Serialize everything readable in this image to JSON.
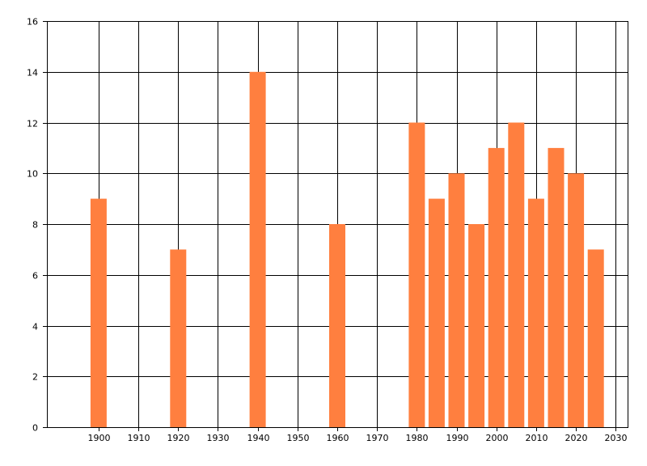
{
  "chart_data": {
    "type": "bar",
    "x": [
      1900,
      1920,
      1940,
      1960,
      1980,
      1985,
      1990,
      1995,
      2000,
      2005,
      2010,
      2015,
      2020,
      2025
    ],
    "values": [
      9,
      7,
      14,
      8,
      12,
      9,
      10,
      8,
      11,
      12,
      9,
      11,
      10,
      7
    ],
    "xlim": [
      1887,
      2033
    ],
    "ylim": [
      0,
      16
    ],
    "x_ticks": [
      1900,
      1910,
      1920,
      1930,
      1940,
      1950,
      1960,
      1970,
      1980,
      1990,
      2000,
      2010,
      2020,
      2030
    ],
    "y_ticks": [
      0,
      2,
      4,
      6,
      8,
      10,
      12,
      14,
      16
    ],
    "grid": true,
    "bar_color": "#ff7f3f",
    "title": "",
    "xlabel": "",
    "ylabel": ""
  }
}
